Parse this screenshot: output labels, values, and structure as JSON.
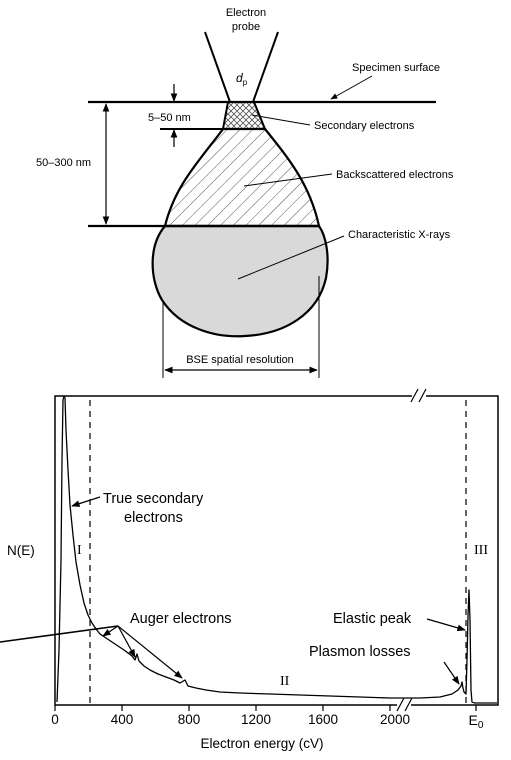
{
  "top_diagram": {
    "probe_label_line1": "Electron",
    "probe_label_line2": "probe",
    "probe_diameter_symbol": "d",
    "probe_diameter_subscript": "p",
    "specimen_surface": "Specimen surface",
    "depth_secondary": "5–50 nm",
    "depth_backscattered": "50–300 nm",
    "secondary_electrons": "Secondary electrons",
    "backscattered_electrons": "Backscattered electrons",
    "characteristic_xrays": "Characteristic X-rays",
    "bse_resolution": "BSE spatial resolution",
    "colors": {
      "line": "#000000",
      "xray_fill": "#d9d9d9",
      "hatch": "#555555"
    }
  },
  "spectrum": {
    "ylabel": "N(E)",
    "xlabel": "Electron energy (cV)",
    "tick_labels": [
      "0",
      "400",
      "800",
      "1200",
      "1600",
      "2000"
    ],
    "e0_symbol": "E",
    "e0_subscript": "0",
    "region_labels": [
      "I",
      "II",
      "III"
    ],
    "annotations": {
      "true_secondary_line1": "True secondary",
      "true_secondary_line2": "electrons",
      "auger": "Auger electrons",
      "elastic": "Elastic peak",
      "plasmon": "Plasmon losses"
    }
  }
}
